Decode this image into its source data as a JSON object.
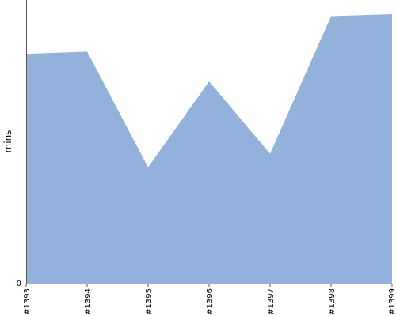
{
  "chart_data": {
    "type": "area",
    "x": [
      "#1393",
      "#1394",
      "#1395",
      "#1396",
      "#1397",
      "#1398",
      "#1399"
    ],
    "y_ticks": [
      "0"
    ],
    "ylabel": "mins",
    "xlabel": "",
    "title": "",
    "ylim": [
      0,
      100
    ],
    "series": [
      {
        "values": [
          81,
          81.8,
          41,
          71.3,
          45.8,
          94.3,
          95
        ],
        "color": "#92b2db"
      }
    ],
    "grid": false,
    "legend": "none"
  }
}
